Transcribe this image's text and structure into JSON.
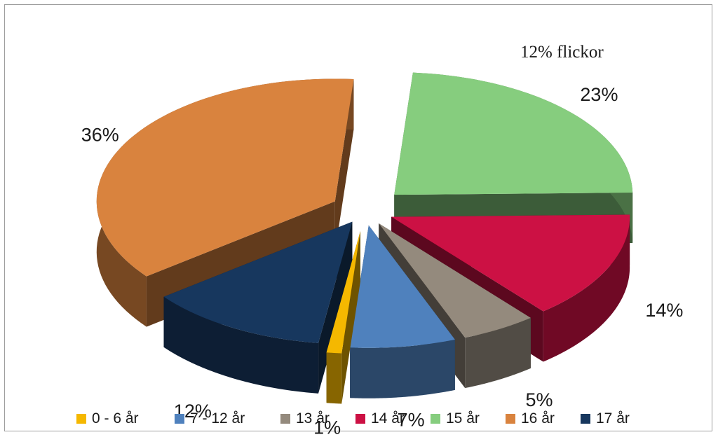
{
  "chart_data": {
    "type": "pie",
    "annotation": "12% flickor",
    "slices": [
      {
        "label": "0 - 6 år",
        "value": 1,
        "display": "1%",
        "color": "#F5B800"
      },
      {
        "label": "7 - 12 år",
        "value": 7,
        "display": "7%",
        "color": "#4F81BD"
      },
      {
        "label": "13 år",
        "value": 5,
        "display": "5%",
        "color": "#948A7D"
      },
      {
        "label": "14 år",
        "value": 14,
        "display": "14%",
        "color": "#CC1144"
      },
      {
        "label": "15 år",
        "value": 23,
        "display": "23%",
        "color": "#86CD7E"
      },
      {
        "label": "16 år",
        "value": 36,
        "display": "36%",
        "color": "#D9833E"
      },
      {
        "label": "17 år",
        "value": 12,
        "display": "12%",
        "color": "#17375E"
      }
    ],
    "legend_position": "bottom",
    "style": "3d-exploded"
  }
}
